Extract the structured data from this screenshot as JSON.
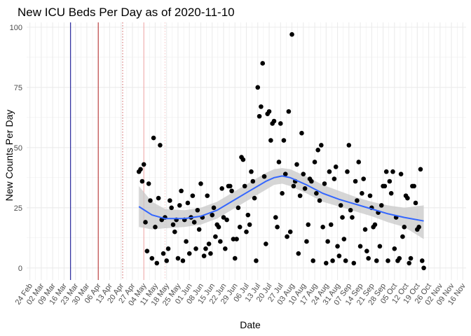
{
  "chart_data": {
    "type": "scatter",
    "title": "New ICU Beds Per Day as of 2020-11-10",
    "xlabel": "Date",
    "ylabel": "New Counts Per Day",
    "ylim": [
      -5,
      102
    ],
    "xlim": [
      -2,
      268
    ],
    "y_ticks": [
      0,
      25,
      50,
      75,
      100
    ],
    "x_tick_labels": [
      "24 Feb",
      "02 Mar",
      "09 Mar",
      "16 Mar",
      "23 Mar",
      "30 Mar",
      "06 Apr",
      "13 Apr",
      "20 Apr",
      "27 Apr",
      "04 May",
      "11 May",
      "18 May",
      "25 May",
      "01 Jun",
      "08 Jun",
      "15 Jun",
      "22 Jun",
      "29 Jun",
      "06 Jul",
      "13 Jul",
      "20 Jul",
      "27 Jul",
      "03 Aug",
      "10 Aug",
      "17 Aug",
      "24 Aug",
      "31 Aug",
      "07 Sep",
      "14 Sep",
      "21 Sep",
      "28 Sep",
      "05 Oct",
      "12 Oct",
      "19 Oct",
      "26 Oct",
      "02 Nov",
      "09 Nov",
      "16 Nov"
    ],
    "x_tick_days": [
      0,
      7,
      14,
      21,
      28,
      35,
      42,
      49,
      56,
      63,
      70,
      77,
      84,
      91,
      98,
      105,
      112,
      119,
      126,
      133,
      140,
      147,
      154,
      161,
      168,
      175,
      182,
      189,
      196,
      203,
      210,
      217,
      224,
      231,
      238,
      245,
      252,
      259,
      266
    ],
    "x_unit": "days since 24 Feb 2020",
    "grid": true,
    "vlines": [
      {
        "day": 25,
        "color": "#00008b",
        "style": "solid"
      },
      {
        "day": 42,
        "color": "#b22222",
        "style": "solid"
      },
      {
        "day": 57,
        "color": "#cd5c5c",
        "style": "dotted"
      },
      {
        "day": 70,
        "color": "#f4a6a6",
        "style": "solid"
      },
      {
        "day": 83,
        "color": "#f4c2c2",
        "style": "dotted"
      }
    ],
    "points": [
      [
        67,
        40
      ],
      [
        68,
        41
      ],
      [
        69,
        36
      ],
      [
        70,
        43
      ],
      [
        71,
        19
      ],
      [
        72,
        7
      ],
      [
        73,
        35
      ],
      [
        74,
        28
      ],
      [
        75,
        4
      ],
      [
        76,
        54
      ],
      [
        77,
        17
      ],
      [
        78,
        2
      ],
      [
        79,
        29
      ],
      [
        80,
        51
      ],
      [
        81,
        20
      ],
      [
        82,
        6
      ],
      [
        83,
        21
      ],
      [
        84,
        3
      ],
      [
        85,
        8
      ],
      [
        86,
        28
      ],
      [
        87,
        25
      ],
      [
        88,
        18
      ],
      [
        89,
        15
      ],
      [
        90,
        20
      ],
      [
        91,
        4
      ],
      [
        92,
        26
      ],
      [
        93,
        32
      ],
      [
        94,
        3
      ],
      [
        95,
        20
      ],
      [
        96,
        11
      ],
      [
        97,
        27
      ],
      [
        98,
        6
      ],
      [
        99,
        21
      ],
      [
        100,
        30
      ],
      [
        101,
        19
      ],
      [
        102,
        8
      ],
      [
        103,
        24
      ],
      [
        104,
        16
      ],
      [
        105,
        35
      ],
      [
        106,
        21
      ],
      [
        107,
        5
      ],
      [
        108,
        8
      ],
      [
        109,
        30
      ],
      [
        110,
        10
      ],
      [
        111,
        6
      ],
      [
        112,
        22
      ],
      [
        113,
        25
      ],
      [
        114,
        13
      ],
      [
        115,
        18
      ],
      [
        116,
        17
      ],
      [
        117,
        11
      ],
      [
        118,
        33
      ],
      [
        119,
        21
      ],
      [
        120,
        8
      ],
      [
        121,
        20
      ],
      [
        122,
        34
      ],
      [
        123,
        34
      ],
      [
        124,
        32
      ],
      [
        125,
        12
      ],
      [
        126,
        4
      ],
      [
        127,
        12
      ],
      [
        128,
        25
      ],
      [
        129,
        17
      ],
      [
        130,
        46
      ],
      [
        131,
        45
      ],
      [
        132,
        34
      ],
      [
        133,
        15
      ],
      [
        134,
        22
      ],
      [
        135,
        18
      ],
      [
        136,
        40
      ],
      [
        137,
        36
      ],
      [
        138,
        29
      ],
      [
        139,
        3
      ],
      [
        140,
        75
      ],
      [
        141,
        63
      ],
      [
        142,
        67
      ],
      [
        143,
        85
      ],
      [
        144,
        38
      ],
      [
        145,
        10
      ],
      [
        146,
        64
      ],
      [
        147,
        65
      ],
      [
        148,
        53
      ],
      [
        149,
        60
      ],
      [
        150,
        61
      ],
      [
        151,
        21
      ],
      [
        152,
        17
      ],
      [
        153,
        44
      ],
      [
        154,
        60
      ],
      [
        155,
        31
      ],
      [
        156,
        53
      ],
      [
        157,
        39
      ],
      [
        158,
        13
      ],
      [
        159,
        65
      ],
      [
        160,
        15
      ],
      [
        161,
        97
      ],
      [
        162,
        34
      ],
      [
        163,
        36
      ],
      [
        164,
        43
      ],
      [
        165,
        6
      ],
      [
        166,
        30
      ],
      [
        167,
        56
      ],
      [
        168,
        39
      ],
      [
        169,
        33
      ],
      [
        170,
        11
      ],
      [
        171,
        18
      ],
      [
        172,
        37
      ],
      [
        173,
        36
      ],
      [
        174,
        3
      ],
      [
        175,
        44
      ],
      [
        176,
        31
      ],
      [
        177,
        49
      ],
      [
        178,
        28
      ],
      [
        179,
        51
      ],
      [
        180,
        17
      ],
      [
        181,
        35
      ],
      [
        182,
        2
      ],
      [
        183,
        11
      ],
      [
        184,
        40
      ],
      [
        185,
        18
      ],
      [
        186,
        3
      ],
      [
        187,
        37
      ],
      [
        188,
        42
      ],
      [
        189,
        9
      ],
      [
        190,
        5
      ],
      [
        191,
        26
      ],
      [
        192,
        21
      ],
      [
        193,
        12
      ],
      [
        194,
        3
      ],
      [
        195,
        40
      ],
      [
        196,
        51
      ],
      [
        197,
        24
      ],
      [
        198,
        21
      ],
      [
        199,
        2
      ],
      [
        200,
        36
      ],
      [
        201,
        28
      ],
      [
        202,
        44
      ],
      [
        203,
        9
      ],
      [
        204,
        31
      ],
      [
        205,
        37
      ],
      [
        206,
        16
      ],
      [
        207,
        7
      ],
      [
        208,
        4
      ],
      [
        209,
        30
      ],
      [
        210,
        25
      ],
      [
        211,
        17
      ],
      [
        212,
        18
      ],
      [
        213,
        3
      ],
      [
        214,
        23
      ],
      [
        215,
        9
      ],
      [
        216,
        26
      ],
      [
        217,
        34
      ],
      [
        218,
        34
      ],
      [
        219,
        40
      ],
      [
        220,
        3
      ],
      [
        221,
        36
      ],
      [
        222,
        31
      ],
      [
        223,
        40
      ],
      [
        224,
        8
      ],
      [
        225,
        21
      ],
      [
        226,
        3
      ],
      [
        227,
        4
      ],
      [
        228,
        39
      ],
      [
        229,
        13
      ],
      [
        230,
        17
      ],
      [
        231,
        30
      ],
      [
        232,
        29
      ],
      [
        233,
        2
      ],
      [
        234,
        4
      ],
      [
        235,
        34
      ],
      [
        236,
        34
      ],
      [
        237,
        27
      ],
      [
        238,
        16
      ],
      [
        239,
        17
      ],
      [
        240,
        41
      ],
      [
        241,
        3
      ],
      [
        242,
        0
      ]
    ],
    "smooth": [
      [
        67,
        25.5
      ],
      [
        75,
        22
      ],
      [
        83,
        20.5
      ],
      [
        95,
        20.5
      ],
      [
        105,
        21.5
      ],
      [
        115,
        24
      ],
      [
        125,
        28
      ],
      [
        135,
        32
      ],
      [
        145,
        36
      ],
      [
        150,
        37.5
      ],
      [
        155,
        38.2
      ],
      [
        160,
        37.5
      ],
      [
        170,
        34.5
      ],
      [
        180,
        31
      ],
      [
        190,
        28.5
      ],
      [
        200,
        26.5
      ],
      [
        210,
        24.5
      ],
      [
        220,
        22.5
      ],
      [
        230,
        21
      ],
      [
        242,
        19.5
      ]
    ],
    "smooth_band": [
      [
        67,
        34
      ],
      [
        75,
        27.5
      ],
      [
        83,
        24.5
      ],
      [
        95,
        24
      ],
      [
        105,
        25
      ],
      [
        115,
        27.5
      ],
      [
        125,
        31.5
      ],
      [
        135,
        35.5
      ],
      [
        145,
        39.5
      ],
      [
        150,
        41
      ],
      [
        155,
        41.5
      ],
      [
        160,
        41
      ],
      [
        170,
        38
      ],
      [
        180,
        34.5
      ],
      [
        190,
        32
      ],
      [
        200,
        29.5
      ],
      [
        210,
        27.5
      ],
      [
        220,
        26
      ],
      [
        230,
        25
      ],
      [
        242,
        26
      ],
      [
        242,
        12
      ],
      [
        230,
        17
      ],
      [
        220,
        19
      ],
      [
        210,
        21.5
      ],
      [
        200,
        23.5
      ],
      [
        190,
        25.5
      ],
      [
        180,
        27.5
      ],
      [
        170,
        31
      ],
      [
        160,
        34
      ],
      [
        155,
        35
      ],
      [
        150,
        34.5
      ],
      [
        145,
        32.5
      ],
      [
        135,
        28.5
      ],
      [
        125,
        24.5
      ],
      [
        115,
        20.5
      ],
      [
        105,
        18
      ],
      [
        95,
        17
      ],
      [
        83,
        16.5
      ],
      [
        75,
        16
      ],
      [
        67,
        17
      ]
    ],
    "colors": {
      "points": "#000000",
      "smooth_line": "#3366ff",
      "band": "#c8c8c8",
      "grid": "#ebebeb"
    }
  }
}
